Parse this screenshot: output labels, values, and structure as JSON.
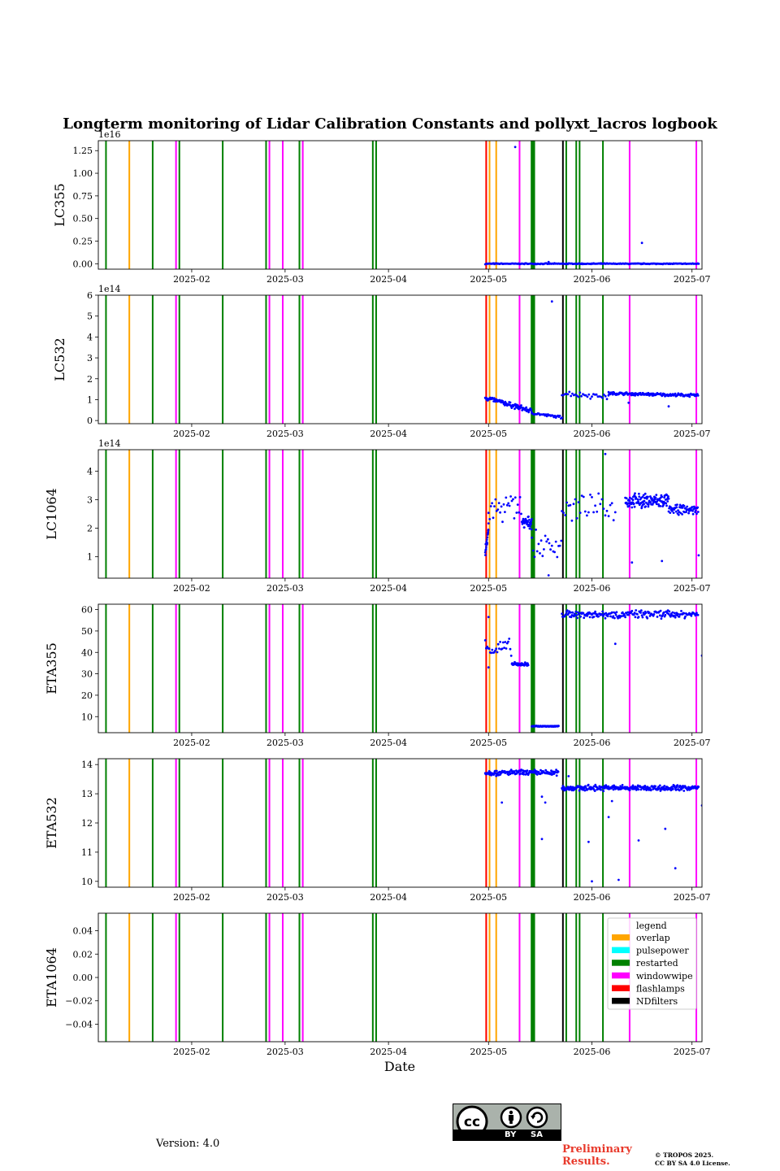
{
  "chart_data": {
    "type": "scatter",
    "title": "Longterm monitoring of Lidar Calibration Constants and pollyxt_lacros logbook",
    "xlabel": "Date",
    "xlim": [
      "2025-01-04",
      "2025-07-04"
    ],
    "x_ticks": [
      "2025-02",
      "2025-03",
      "2025-04",
      "2025-05",
      "2025-06",
      "2025-07"
    ],
    "panels": [
      {
        "ylabel": "LC355",
        "offset_text": "1e16",
        "ylim": [
          -0.06,
          1.36
        ],
        "yticks": [
          "0.00",
          "0.25",
          "0.50",
          "0.75",
          "1.00",
          "1.25"
        ],
        "ytick_values": [
          0,
          0.25,
          0.5,
          0.75,
          1.0,
          1.25
        ],
        "segments": [
          {
            "start": "2025-04-30",
            "end": "2025-07-03",
            "mean": 0.0,
            "spread": 0.006,
            "step": 0.25
          }
        ],
        "points": [
          {
            "x": "2025-05-09",
            "y": 1.29
          },
          {
            "x": "2025-06-16",
            "y": 0.23
          },
          {
            "x": "2025-05-19",
            "y": 0.02
          }
        ]
      },
      {
        "ylabel": "LC532",
        "offset_text": "1e14",
        "ylim": [
          -0.15,
          6.0
        ],
        "yticks": [
          "0",
          "1",
          "2",
          "3",
          "4",
          "5",
          "6"
        ],
        "ytick_values": [
          0,
          1,
          2,
          3,
          4,
          5,
          6
        ],
        "segments": [
          {
            "start": "2025-04-30",
            "end": "2025-05-14",
            "mean": 1.1,
            "mean_end": 0.45,
            "spread": 0.15,
            "step": 0.15
          },
          {
            "start": "2025-05-14",
            "end": "2025-05-23",
            "mean": 0.35,
            "mean_end": 0.15,
            "spread": 0.08,
            "step": 0.3
          },
          {
            "start": "2025-05-23",
            "end": "2025-06-06",
            "mean": 1.3,
            "mean_end": 1.15,
            "spread": 0.18,
            "step": 0.45
          },
          {
            "start": "2025-06-06",
            "end": "2025-07-03",
            "mean": 1.3,
            "mean_end": 1.2,
            "spread": 0.09,
            "step": 0.18
          }
        ],
        "points": [
          {
            "x": "2025-05-20",
            "y": 5.7
          },
          {
            "x": "2025-06-12",
            "y": 0.85
          },
          {
            "x": "2025-06-24",
            "y": 0.68
          }
        ]
      },
      {
        "ylabel": "LC1064",
        "offset_text": "1e14",
        "ylim": [
          0.25,
          4.75
        ],
        "yticks": [
          "1",
          "2",
          "3",
          "4"
        ],
        "ytick_values": [
          1,
          2,
          3,
          4
        ],
        "segments": [
          {
            "start": "2025-04-30",
            "end": "2025-05-01",
            "mean": 1.2,
            "mean_end": 2.0,
            "spread": 0.3,
            "step": 0.05
          },
          {
            "start": "2025-05-01",
            "end": "2025-05-11",
            "mean": 2.6,
            "mean_end": 2.8,
            "spread": 0.6,
            "step": 0.35
          },
          {
            "start": "2025-05-11",
            "end": "2025-05-14",
            "mean": 2.2,
            "spread": 0.25,
            "step": 0.08
          },
          {
            "start": "2025-05-14",
            "end": "2025-05-23",
            "mean": 1.4,
            "spread": 0.55,
            "step": 0.4
          },
          {
            "start": "2025-05-23",
            "end": "2025-06-08",
            "mean": 2.7,
            "spread": 0.55,
            "step": 0.5
          },
          {
            "start": "2025-06-11",
            "end": "2025-06-24",
            "mean": 2.95,
            "spread": 0.3,
            "step": 0.1
          },
          {
            "start": "2025-06-24",
            "end": "2025-07-03",
            "mean": 2.65,
            "spread": 0.2,
            "step": 0.15
          }
        ],
        "points": [
          {
            "x": "2025-06-05",
            "y": 4.6
          },
          {
            "x": "2025-06-13",
            "y": 0.8
          },
          {
            "x": "2025-06-22",
            "y": 0.85
          },
          {
            "x": "2025-07-03",
            "y": 1.05
          },
          {
            "x": "2025-05-19",
            "y": 0.35
          }
        ]
      },
      {
        "ylabel": "ETA355",
        "offset_text": "",
        "ylim": [
          2.5,
          62.5
        ],
        "yticks": [
          "10",
          "20",
          "30",
          "40",
          "50",
          "60"
        ],
        "ytick_values": [
          10,
          20,
          30,
          40,
          50,
          60
        ],
        "segments": [
          {
            "start": "2025-04-30",
            "end": "2025-05-08",
            "mean": 42,
            "spread": 5,
            "step": 0.3
          },
          {
            "start": "2025-05-08",
            "end": "2025-05-13",
            "mean": 34.5,
            "spread": 1,
            "step": 0.12
          },
          {
            "start": "2025-05-14",
            "end": "2025-05-22",
            "mean": 5.5,
            "spread": 0.3,
            "step": 0.1
          },
          {
            "start": "2025-05-23",
            "end": "2025-07-03",
            "mean": 57.8,
            "spread": 2.2,
            "step": 0.2
          }
        ],
        "points": [
          {
            "x": "2025-06-08",
            "y": 44
          },
          {
            "x": "2025-07-04",
            "y": 38.5
          },
          {
            "x": "2025-05-01",
            "y": 56.5
          },
          {
            "x": "2025-05-01",
            "y": 33
          }
        ]
      },
      {
        "ylabel": "ETA532",
        "offset_text": "",
        "ylim": [
          9.8,
          14.2
        ],
        "yticks": [
          "10",
          "11",
          "12",
          "13",
          "14"
        ],
        "ytick_values": [
          10,
          11,
          12,
          13,
          14
        ],
        "segments": [
          {
            "start": "2025-04-30",
            "end": "2025-05-22",
            "mean": 13.72,
            "spread": 0.12,
            "step": 0.15
          },
          {
            "start": "2025-05-23",
            "end": "2025-07-03",
            "mean": 13.2,
            "spread": 0.12,
            "step": 0.15
          }
        ],
        "points": [
          {
            "x": "2025-05-05",
            "y": 12.7
          },
          {
            "x": "2025-05-17",
            "y": 12.9
          },
          {
            "x": "2025-05-17",
            "y": 11.45
          },
          {
            "x": "2025-05-18",
            "y": 12.7
          },
          {
            "x": "2025-05-31",
            "y": 11.35
          },
          {
            "x": "2025-06-01",
            "y": 10.0
          },
          {
            "x": "2025-06-06",
            "y": 12.2
          },
          {
            "x": "2025-06-07",
            "y": 12.75
          },
          {
            "x": "2025-06-09",
            "y": 10.05
          },
          {
            "x": "2025-06-15",
            "y": 11.4
          },
          {
            "x": "2025-06-23",
            "y": 11.8
          },
          {
            "x": "2025-06-26",
            "y": 10.45
          },
          {
            "x": "2025-07-04",
            "y": 12.6
          },
          {
            "x": "2025-05-25",
            "y": 13.6
          }
        ]
      },
      {
        "ylabel": "ETA1064",
        "offset_text": "",
        "ylim": [
          -0.055,
          0.055
        ],
        "yticks": [
          "−0.04",
          "−0.02",
          "0.00",
          "0.02",
          "0.04"
        ],
        "ytick_values": [
          -0.04,
          -0.02,
          0,
          0.02,
          0.04
        ],
        "segments": [],
        "points": []
      }
    ],
    "events": [
      {
        "date": "2025-01-06",
        "type": "restarted"
      },
      {
        "date": "2025-01-13",
        "type": "overlap"
      },
      {
        "date": "2025-01-20",
        "type": "restarted"
      },
      {
        "date": "2025-01-27",
        "type": "windowwipe"
      },
      {
        "date": "2025-01-28",
        "type": "restarted"
      },
      {
        "date": "2025-02-10",
        "type": "restarted"
      },
      {
        "date": "2025-02-23",
        "type": "restarted"
      },
      {
        "date": "2025-02-24",
        "type": "windowwipe"
      },
      {
        "date": "2025-02-28",
        "type": "windowwipe"
      },
      {
        "date": "2025-03-05",
        "type": "restarted"
      },
      {
        "date": "2025-03-06",
        "type": "windowwipe"
      },
      {
        "date": "2025-03-27",
        "type": "restarted"
      },
      {
        "date": "2025-03-28",
        "type": "restarted"
      },
      {
        "date": "2025-04-30",
        "type": "overlap"
      },
      {
        "date": "2025-04-30",
        "type": "flashlamps"
      },
      {
        "date": "2025-05-01",
        "type": "overlap"
      },
      {
        "date": "2025-05-03",
        "type": "overlap"
      },
      {
        "date": "2025-05-10",
        "type": "windowwipe"
      },
      {
        "date": "2025-05-14",
        "type": "restarted",
        "span": 1.3
      },
      {
        "date": "2025-05-23",
        "type": "NDfilters"
      },
      {
        "date": "2025-05-24",
        "type": "restarted"
      },
      {
        "date": "2025-05-27",
        "type": "restarted"
      },
      {
        "date": "2025-05-28",
        "type": "restarted"
      },
      {
        "date": "2025-06-04",
        "type": "restarted"
      },
      {
        "date": "2025-06-12",
        "type": "windowwipe"
      },
      {
        "date": "2025-07-02",
        "type": "windowwipe"
      }
    ],
    "legend": {
      "title": "legend",
      "placement": "right, bottom panel",
      "entries": [
        {
          "label": "overlap",
          "color": "#ffa500"
        },
        {
          "label": "pulsepower",
          "color": "#00ffff"
        },
        {
          "label": "restarted",
          "color": "#008000"
        },
        {
          "label": "windowwipe",
          "color": "#ff00ff"
        },
        {
          "label": "flashlamps",
          "color": "#ff0000"
        },
        {
          "label": "NDfilters",
          "color": "#000000"
        }
      ]
    },
    "point_color": "#0000ff"
  },
  "footer": {
    "version": "Version: 4.0",
    "cc_by": "BY",
    "cc_sa": "SA",
    "cc_mark": "cc",
    "preliminary": "Preliminary Results.",
    "copyright_line1": "© TROPOS 2025.",
    "copyright_line2": "CC BY SA 4.0 License."
  }
}
